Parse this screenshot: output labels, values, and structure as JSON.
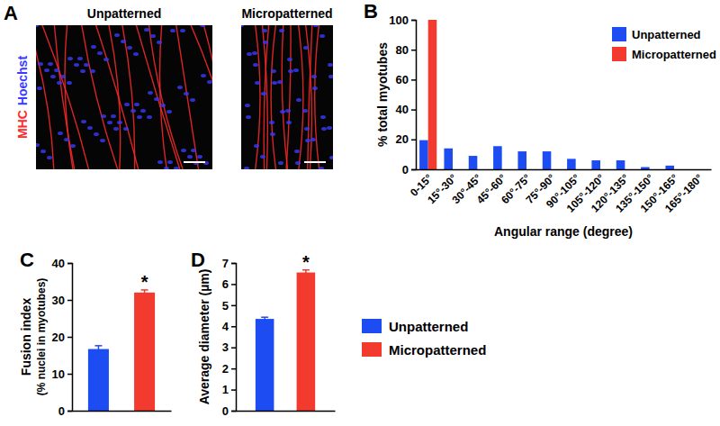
{
  "panel_a": {
    "label": "A",
    "images": [
      "Unpatterned",
      "Micropatterned"
    ],
    "stains": [
      {
        "name": "MHC",
        "color": "#ff2a2a"
      },
      {
        "name": "Hoechst",
        "color": "#3a3aff"
      }
    ]
  },
  "chart_data": [
    {
      "type": "bar",
      "annotations": [
        "B"
      ],
      "categories": [
        "0-15°",
        "15°-30°",
        "30°-45°",
        "45°-60°",
        "60°-75°",
        "75°-90°",
        "90°-105°",
        "105°-120°",
        "120°-135°",
        "135°-150°",
        "150°-165°",
        "165°-180°"
      ],
      "series": [
        {
          "name": "Unpatterned",
          "color": "#1c4cf2",
          "values": [
            19.5,
            14,
            9,
            15.5,
            12,
            12,
            7,
            6,
            6,
            1.5,
            2.5,
            0
          ]
        },
        {
          "name": "Micropatterned",
          "color": "#f23a2e",
          "values": [
            100,
            0,
            0,
            0,
            0,
            0,
            0,
            0,
            0,
            0,
            0,
            0
          ]
        }
      ],
      "xlabel": "Angular range (degree)",
      "ylabel": "% total myotubes",
      "ylim": [
        0,
        100
      ],
      "yticks": [
        0,
        20,
        40,
        60,
        80,
        100
      ],
      "legend": "top-right"
    },
    {
      "type": "bar",
      "annotations": [
        "C"
      ],
      "categories": [
        null,
        null
      ],
      "values": [
        16.7,
        32
      ],
      "errors": [
        0.9,
        0.7
      ],
      "colors": [
        "#1c4cf2",
        "#f23a2e"
      ],
      "significance": [
        null,
        "*"
      ],
      "ylabel": [
        "Fusion index",
        "(% nuclei in myotubes)"
      ],
      "ylim": [
        0,
        40
      ],
      "yticks": [
        0,
        10,
        20,
        30,
        40
      ]
    },
    {
      "type": "bar",
      "annotations": [
        "D"
      ],
      "categories": [
        null
      ],
      "series": [
        {
          "name": "Unpatterned",
          "color": "#1c4cf2",
          "values": [
            4.35
          ],
          "errors": [
            0.08
          ]
        },
        {
          "name": "Micropatterned",
          "color": "#f23a2e",
          "values": [
            6.55
          ],
          "errors": [
            0.12
          ],
          "significance": [
            "*"
          ]
        }
      ],
      "ylabel": "Average diameter (µm)",
      "ylim": [
        0,
        7
      ],
      "yticks": [
        0,
        1,
        2,
        3,
        4,
        5,
        6,
        7
      ],
      "legend": "right"
    }
  ]
}
